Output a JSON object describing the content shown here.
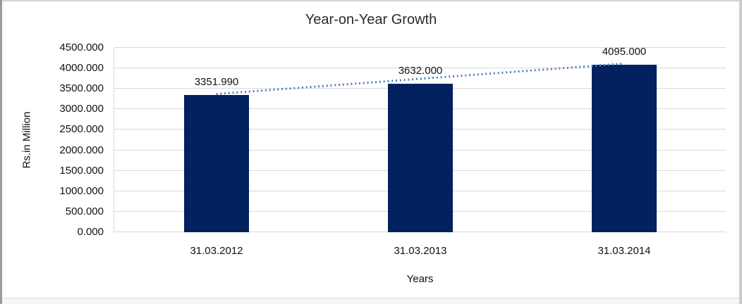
{
  "chart_data": {
    "type": "bar",
    "title": "Year-on-Year Growth",
    "xlabel": "Years",
    "ylabel": "Rs.in Million",
    "categories": [
      "31.03.2012",
      "31.03.2013",
      "31.03.2014"
    ],
    "values": [
      3351.99,
      3632.0,
      4095.0
    ],
    "data_labels": [
      "3351.990",
      "3632.000",
      "4095.000"
    ],
    "ylim": [
      0,
      4500
    ],
    "ytick_step": 500,
    "ytick_labels": [
      "0.000",
      "500.000",
      "1000.000",
      "1500.000",
      "2000.000",
      "2500.000",
      "3000.000",
      "3500.000",
      "4000.000",
      "4500.000"
    ],
    "grid": true,
    "legend": "none",
    "trendline": {
      "type": "linear",
      "style": "dotted"
    },
    "colors": {
      "bar": "#02215e",
      "trendline": "#4f81bd",
      "gridline": "#d9d9d9",
      "text": "#111111",
      "background": "#ffffff"
    }
  }
}
